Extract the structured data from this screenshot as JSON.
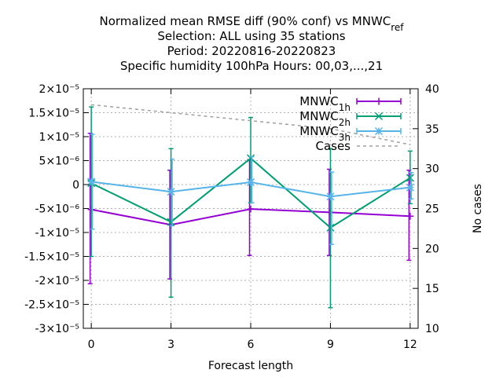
{
  "chart_data": {
    "type": "line",
    "title_lines": [
      "Normalized mean RMSE diff (90% conf) vs MNWC_ref",
      "Selection: ALL using    35 stations",
      "Period: 20220816-20220823",
      "Specific humidity 100hPa   Hours:  00,03,...,21"
    ],
    "xlabel": "Forecast length",
    "y2label": "No cases",
    "x": [
      0,
      3,
      6,
      9,
      12
    ],
    "xlim": [
      -0.3,
      12.3
    ],
    "ylim": [
      -3e-05,
      2e-05
    ],
    "y2lim": [
      10,
      40
    ],
    "xticks": [
      "0",
      "3",
      "6",
      "9",
      "12"
    ],
    "yticks": [
      "2×10⁻⁵",
      "1.5×10⁻⁵",
      "1×10⁻⁵",
      "5×10⁻⁶",
      "0",
      "-5×10⁻⁶",
      "-1×10⁻⁵",
      "-1.5×10⁻⁵",
      "-2×10⁻⁵",
      "-2.5×10⁻⁵",
      "-3×10⁻⁵"
    ],
    "ytick_values": [
      2e-05,
      1.5e-05,
      1e-05,
      5e-06,
      0,
      -5e-06,
      -1e-05,
      -1.5e-05,
      -2e-05,
      -2.5e-05,
      -3e-05
    ],
    "y2ticks": [
      "40",
      "35",
      "30",
      "25",
      "20",
      "15",
      "10"
    ],
    "y2tick_values": [
      40,
      35,
      30,
      25,
      20,
      15,
      10
    ],
    "grid": true,
    "legend_position": "top-right",
    "series": [
      {
        "name": "MNWC_1h",
        "color": "#9400d3",
        "marker": "plus",
        "values": [
          -5.2e-06,
          -8.4e-06,
          -5.1e-06,
          -5.8e-06,
          -6.6e-06
        ],
        "err_low": [
          -2.07e-05,
          -1.97e-05,
          -1.48e-05,
          -1.48e-05,
          -1.58e-05
        ],
        "err_high": [
          1.07e-05,
          3e-06,
          5.2e-06,
          3.2e-06,
          3e-06
        ]
      },
      {
        "name": "MNWC_2h",
        "color": "#009e73",
        "marker": "x",
        "values": [
          3e-07,
          -7.8e-06,
          5.5e-06,
          -9e-06,
          1.4e-06
        ],
        "err_low": [
          -1.5e-05,
          -2.35e-05,
          -3.8e-06,
          -2.57e-05,
          -4e-06
        ],
        "err_high": [
          1.62e-05,
          7.5e-06,
          1.4e-05,
          7.5e-06,
          7e-06
        ]
      },
      {
        "name": "MNWC_3h",
        "color": "#56b4e9",
        "marker": "star",
        "values": [
          6e-07,
          -1.5e-06,
          5e-07,
          -2.5e-06,
          -6e-07
        ],
        "err_low": [
          -9.3e-06,
          -8.6e-06,
          -3.8e-06,
          -1.25e-05,
          -3e-06
        ],
        "err_high": [
          1.05e-05,
          5.3e-06,
          5.8e-06,
          2.6e-06,
          2.5e-06
        ]
      },
      {
        "name": "Cases",
        "color": "#a0a0a0",
        "axis": "y2",
        "dashed": true,
        "values": [
          38,
          37,
          36,
          35,
          33
        ]
      }
    ]
  }
}
